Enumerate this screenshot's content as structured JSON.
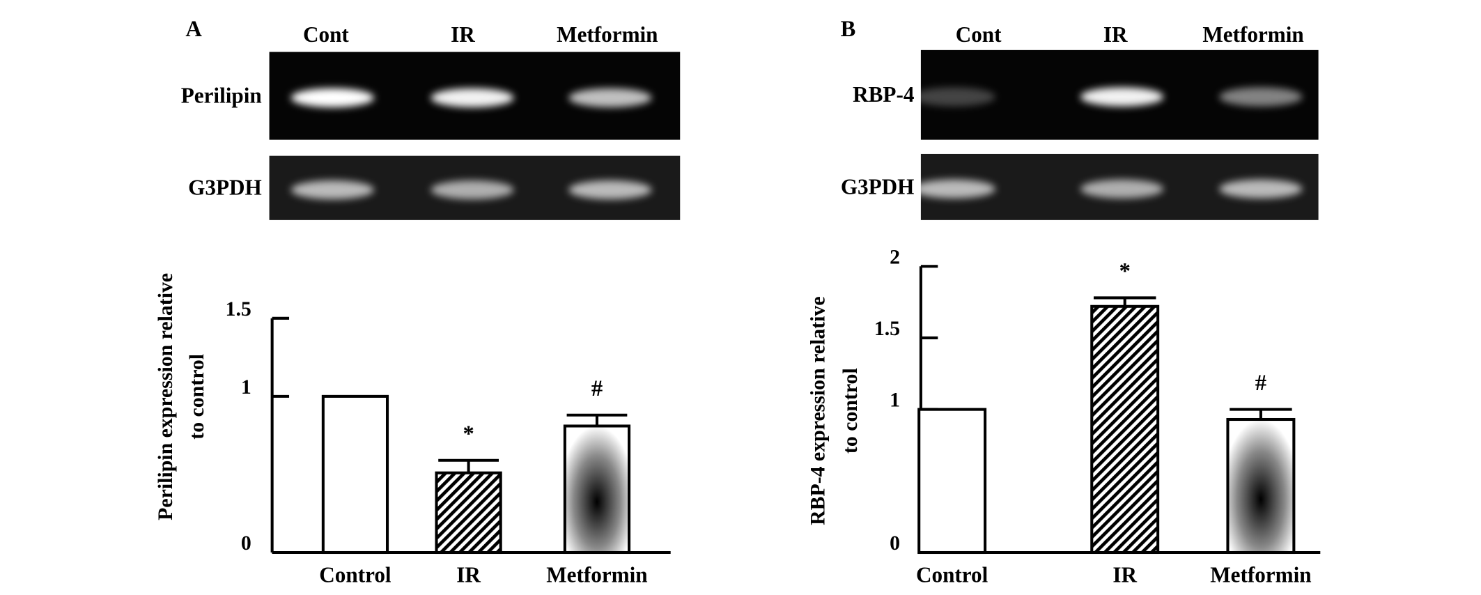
{
  "panel_labels": [
    "A",
    "B"
  ],
  "gels": [
    {
      "lanes": [
        "Cont",
        "IR",
        "Metformin"
      ],
      "rows": [
        "Perilipin",
        "G3PDH"
      ]
    },
    {
      "lanes": [
        "Cont",
        "IR",
        "Metformin"
      ],
      "rows": [
        "RBP-4",
        "G3PDH"
      ]
    }
  ],
  "chart_data": [
    {
      "type": "bar",
      "y_label": [
        "Perilipin expression relative",
        "to control"
      ],
      "categories": [
        "Control",
        "IR",
        "Metformin"
      ],
      "values": [
        1.0,
        0.51,
        0.81
      ],
      "errors": [
        null,
        0.08,
        0.07
      ],
      "value_annotations": [
        null,
        "*",
        "#"
      ],
      "fills": [
        "white",
        "hatch",
        "gradient"
      ],
      "ylim": [
        0,
        1.5
      ],
      "yticks": [
        0,
        1,
        1.5
      ]
    },
    {
      "type": "bar",
      "y_label": [
        "RBP-4 expression relative",
        "to control"
      ],
      "categories": [
        "Control",
        "IR",
        "Metformin"
      ],
      "values": [
        1.0,
        1.72,
        0.93
      ],
      "errors": [
        null,
        0.06,
        0.07
      ],
      "value_annotations": [
        null,
        "*",
        "#"
      ],
      "fills": [
        "white",
        "hatch",
        "gradient"
      ],
      "ylim": [
        0,
        2
      ],
      "yticks": [
        0,
        1,
        1.5,
        2
      ]
    }
  ]
}
